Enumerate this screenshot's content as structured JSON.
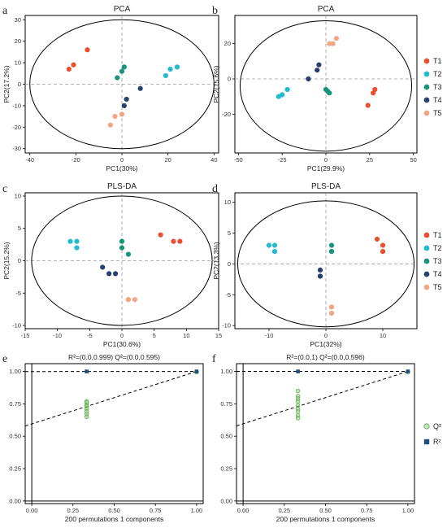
{
  "colors": {
    "T1": "#e8502f",
    "T2": "#22bcd0",
    "T3": "#16957b",
    "T4": "#27416e",
    "T5": "#f4a585",
    "Q2": "#8fcf7c",
    "R2": "#1f4f7a"
  },
  "legend": {
    "groups": [
      "T1",
      "T2",
      "T3",
      "T4",
      "T5"
    ],
    "perm": [
      {
        "label": "Q²",
        "shape": "circle",
        "color": "#8fcf7c"
      },
      {
        "label": "R²",
        "shape": "square",
        "color": "#1f4f7a"
      }
    ]
  },
  "chart_data": [
    {
      "panel": "a",
      "type": "scatter",
      "title": "PCA",
      "xlabel": "PC1(30%)",
      "ylabel": "PC2(17.2%)",
      "xlim": [
        -42,
        42
      ],
      "ylim": [
        -32,
        32
      ],
      "xticks": [
        -40,
        -20,
        0,
        20,
        40
      ],
      "yticks": [
        -30,
        -20,
        -10,
        0,
        10,
        20,
        30
      ],
      "ellipse": {
        "cx": 0,
        "cy": 0,
        "rx": 40,
        "ry": 30
      },
      "series": [
        {
          "name": "T1",
          "points": [
            [
              -23,
              7
            ],
            [
              -21,
              9
            ],
            [
              -15,
              16
            ]
          ]
        },
        {
          "name": "T2",
          "points": [
            [
              19,
              4
            ],
            [
              21,
              7
            ],
            [
              24,
              8
            ]
          ]
        },
        {
          "name": "T3",
          "points": [
            [
              -2,
              3
            ],
            [
              0,
              6
            ],
            [
              1,
              8
            ]
          ]
        },
        {
          "name": "T4",
          "points": [
            [
              1,
              -10
            ],
            [
              2,
              -7
            ],
            [
              8,
              -2
            ]
          ]
        },
        {
          "name": "T5",
          "points": [
            [
              -5,
              -19
            ],
            [
              -3,
              -15
            ],
            [
              0,
              -14
            ]
          ]
        }
      ]
    },
    {
      "panel": "b",
      "type": "scatter",
      "title": "PCA",
      "xlabel": "PC1(29.9%)",
      "ylabel": "PC2(15.6%)",
      "xlim": [
        -52,
        52
      ],
      "ylim": [
        -42,
        36
      ],
      "xticks": [
        -50,
        -25,
        0,
        25,
        50
      ],
      "yticks": [
        -20,
        0,
        20
      ],
      "ellipse": {
        "cx": 0,
        "cy": -4,
        "rx": 49,
        "ry": 37
      },
      "series": [
        {
          "name": "T1",
          "points": [
            [
              24,
              -15
            ],
            [
              27,
              -8
            ],
            [
              28,
              -6
            ]
          ]
        },
        {
          "name": "T2",
          "points": [
            [
              -27,
              -10
            ],
            [
              -25,
              -9
            ],
            [
              -22,
              -6
            ]
          ]
        },
        {
          "name": "T3",
          "points": [
            [
              0,
              -6
            ],
            [
              1,
              -7
            ],
            [
              2,
              -8
            ]
          ]
        },
        {
          "name": "T4",
          "points": [
            [
              -10,
              0
            ],
            [
              -5,
              5
            ],
            [
              -4,
              8
            ]
          ]
        },
        {
          "name": "T5",
          "points": [
            [
              2,
              20
            ],
            [
              4,
              20
            ],
            [
              6,
              23
            ]
          ]
        }
      ]
    },
    {
      "panel": "c",
      "type": "scatter",
      "title": "PLS-DA",
      "xlabel": "PC1(30.6%)",
      "ylabel": "PC2(15.2%)",
      "xlim": [
        -15,
        15
      ],
      "ylim": [
        -10.5,
        10.5
      ],
      "xticks": [
        -15,
        -10,
        -5,
        0,
        5,
        10,
        15
      ],
      "yticks": [
        -10,
        -5,
        0,
        5,
        10
      ],
      "ellipse": {
        "cx": 0,
        "cy": 0,
        "rx": 14,
        "ry": 10
      },
      "series": [
        {
          "name": "T1",
          "points": [
            [
              6,
              4
            ],
            [
              8,
              3
            ],
            [
              9,
              3
            ]
          ]
        },
        {
          "name": "T2",
          "points": [
            [
              -8,
              3
            ],
            [
              -7,
              3
            ],
            [
              -7,
              2
            ]
          ]
        },
        {
          "name": "T3",
          "points": [
            [
              0,
              3
            ],
            [
              0,
              2
            ],
            [
              1,
              1
            ]
          ]
        },
        {
          "name": "T4",
          "points": [
            [
              -3,
              -1
            ],
            [
              -2,
              -2
            ],
            [
              -1,
              -2
            ]
          ]
        },
        {
          "name": "T5",
          "points": [
            [
              1,
              -6
            ],
            [
              1,
              -6
            ],
            [
              2,
              -6
            ]
          ]
        }
      ]
    },
    {
      "panel": "d",
      "type": "scatter",
      "title": "PLS-DA",
      "xlabel": "PC1(32%)",
      "ylabel": "PC2(13.3%)",
      "xlim": [
        -16,
        16
      ],
      "ylim": [
        -10.5,
        11.5
      ],
      "xticks": [
        -10,
        0,
        10
      ],
      "yticks": [
        -10,
        -5,
        0,
        5,
        10
      ],
      "ellipse": {
        "cx": 0,
        "cy": 0,
        "rx": 15.5,
        "ry": 10.2
      },
      "series": [
        {
          "name": "T1",
          "points": [
            [
              9,
              4
            ],
            [
              10,
              3
            ],
            [
              10,
              2
            ]
          ]
        },
        {
          "name": "T2",
          "points": [
            [
              -10,
              3
            ],
            [
              -9,
              3
            ],
            [
              -9,
              2
            ]
          ]
        },
        {
          "name": "T3",
          "points": [
            [
              1,
              3
            ],
            [
              1,
              2
            ],
            [
              1,
              2
            ]
          ]
        },
        {
          "name": "T4",
          "points": [
            [
              -1,
              -1
            ],
            [
              -1,
              -2
            ],
            [
              -1,
              -2
            ]
          ]
        },
        {
          "name": "T5",
          "points": [
            [
              1,
              -7
            ],
            [
              1,
              -7
            ],
            [
              1,
              -8
            ]
          ]
        }
      ]
    },
    {
      "panel": "e",
      "type": "scatter",
      "title": "R²=(0.0,0.999)   Q²=(0.0,0.595)",
      "xlabel": "200 permutations 1 components",
      "ylabel": "",
      "xlim": [
        -0.04,
        1.04
      ],
      "ylim": [
        -0.02,
        1.06
      ],
      "xticks": [
        0.0,
        0.25,
        0.5,
        0.75,
        1.0
      ],
      "yticks": [
        0.0,
        0.25,
        0.5,
        0.75,
        1.0
      ],
      "tick_labels_x": [
        "0.00",
        "0.25",
        "0.50",
        "0.75",
        "1.00"
      ],
      "tick_labels_y": [
        "0.00",
        "0.25",
        "0.50",
        "0.75",
        "1.00"
      ],
      "q2_line": [
        [
          0.0,
          0.595
        ],
        [
          1.0,
          1.0
        ]
      ],
      "r2_line": [
        [
          0.0,
          0.999
        ],
        [
          1.0,
          1.0
        ]
      ],
      "q2_points": [
        [
          0.333,
          0.77
        ],
        [
          0.333,
          0.76
        ],
        [
          0.333,
          0.74
        ],
        [
          0.333,
          0.73
        ],
        [
          0.333,
          0.71
        ],
        [
          0.333,
          0.69
        ],
        [
          0.333,
          0.67
        ],
        [
          0.333,
          0.65
        ],
        [
          1.0,
          0.995
        ]
      ],
      "r2_points": [
        [
          0.333,
          1.0
        ],
        [
          1.0,
          1.0
        ]
      ]
    },
    {
      "panel": "f",
      "type": "scatter",
      "title": "R²=(0.0,1)   Q²=(0.0,0.596)",
      "xlabel": "200 permutations 1 components",
      "ylabel": "",
      "xlim": [
        -0.04,
        1.04
      ],
      "ylim": [
        -0.02,
        1.06
      ],
      "xticks": [
        0.0,
        0.25,
        0.5,
        0.75,
        1.0
      ],
      "yticks": [
        0.0,
        0.25,
        0.5,
        0.75,
        1.0
      ],
      "tick_labels_x": [
        "0.00",
        "0.25",
        "0.50",
        "0.75",
        "1.00"
      ],
      "tick_labels_y": [
        "0.00",
        "0.25",
        "0.50",
        "0.75",
        "1.00"
      ],
      "q2_line": [
        [
          0.0,
          0.596
        ],
        [
          1.0,
          1.0
        ]
      ],
      "r2_line": [
        [
          0.0,
          1.0
        ],
        [
          1.0,
          1.0
        ]
      ],
      "q2_points": [
        [
          0.333,
          0.85
        ],
        [
          0.333,
          0.81
        ],
        [
          0.333,
          0.79
        ],
        [
          0.333,
          0.77
        ],
        [
          0.333,
          0.74
        ],
        [
          0.333,
          0.71
        ],
        [
          0.333,
          0.69
        ],
        [
          0.333,
          0.66
        ],
        [
          0.333,
          0.64
        ],
        [
          1.0,
          0.995
        ]
      ],
      "r2_points": [
        [
          0.333,
          1.0
        ],
        [
          1.0,
          1.0
        ]
      ]
    }
  ]
}
